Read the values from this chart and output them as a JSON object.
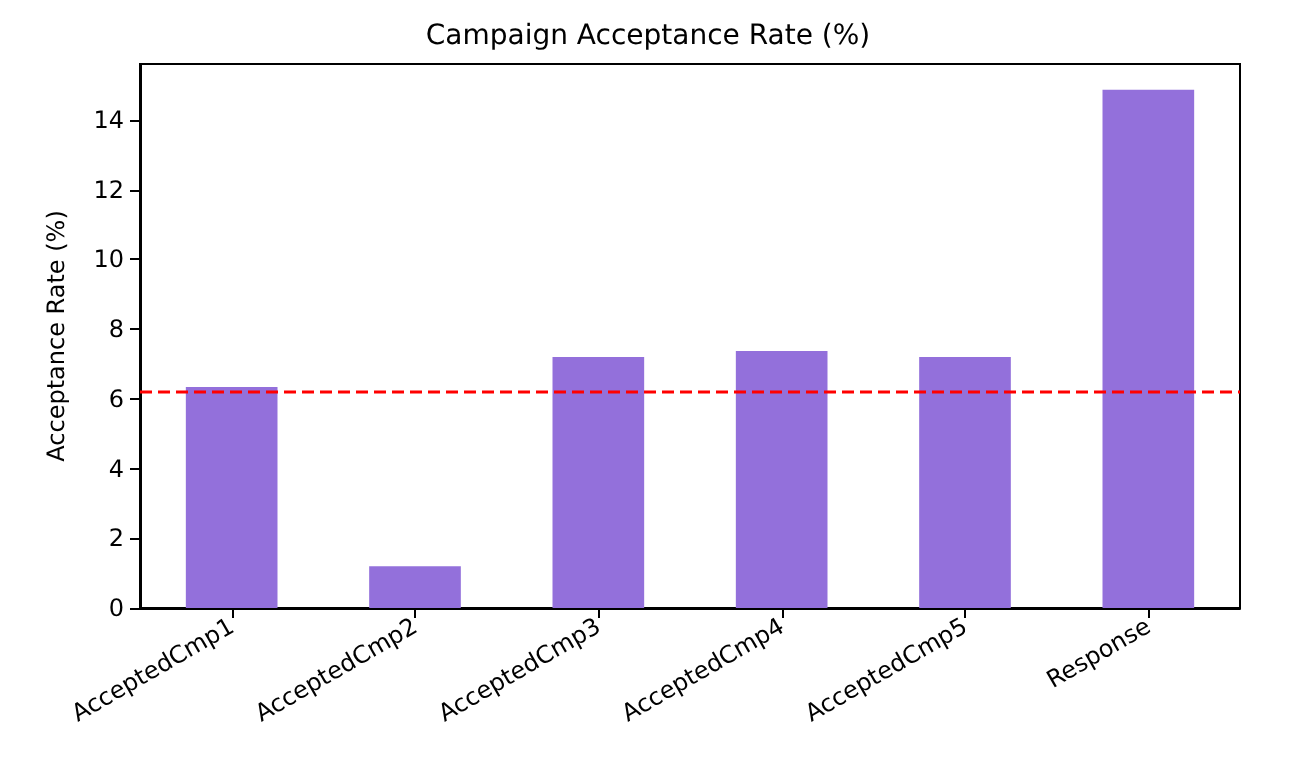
{
  "chart_data": {
    "type": "bar",
    "title": "Campaign Acceptance Rate (%)",
    "ylabel": "Acceptance Rate (%)",
    "categories": [
      "AcceptedCmp1",
      "AcceptedCmp2",
      "AcceptedCmp3",
      "AcceptedCmp4",
      "AcceptedCmp5",
      "Response"
    ],
    "values": [
      6.34,
      1.2,
      7.2,
      7.37,
      7.2,
      14.86
    ],
    "color": "#9370db",
    "ylim": [
      0,
      15.6
    ],
    "yticks": [
      0,
      2,
      4,
      6,
      8,
      10,
      12,
      14
    ],
    "ref_lines": [
      {
        "axis": "y",
        "value": 6.22,
        "color": "#ff0000",
        "line_style": "dashed"
      }
    ],
    "grid": false
  }
}
